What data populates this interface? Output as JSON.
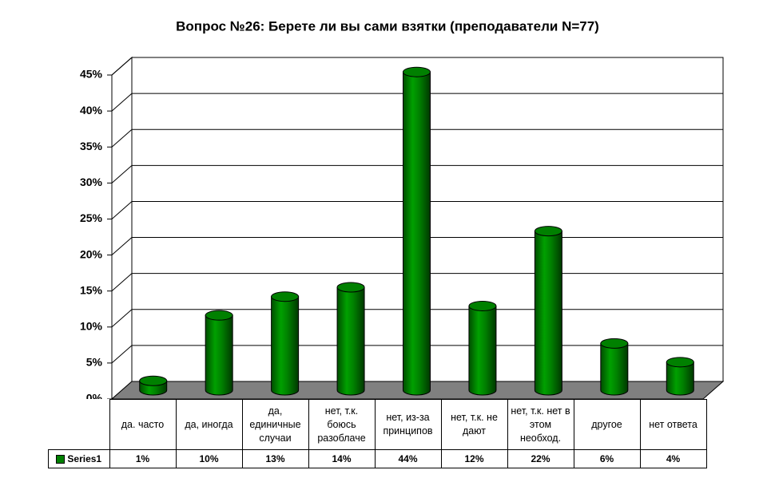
{
  "chart_data": {
    "type": "bar3d",
    "title": "Вопрос №26: Берете ли вы сами взятки (преподаватели N=77)",
    "categories": [
      "да. часто",
      "да, иногда",
      "да, единичные случаи",
      "нет, т.к. боюсь разоблаче",
      "нет, из-за принципов",
      "нет, т.к. не дают",
      "нет, т.к. нет в этом необход.",
      "другое",
      "нет ответа"
    ],
    "series": [
      {
        "name": "Series1",
        "color": "#008000",
        "values": [
          1.3,
          10.4,
          13.0,
          14.3,
          44.2,
          11.7,
          22.1,
          6.5,
          3.9
        ],
        "value_labels": [
          "1%",
          "10%",
          "13%",
          "14%",
          "44%",
          "12%",
          "22%",
          "6%",
          "4%"
        ]
      }
    ],
    "ylim": [
      0,
      45
    ],
    "yticks": [
      {
        "value": 0,
        "label": "0%"
      },
      {
        "value": 5,
        "label": "5%"
      },
      {
        "value": 10,
        "label": "10%"
      },
      {
        "value": 15,
        "label": "15%"
      },
      {
        "value": 20,
        "label": "20%"
      },
      {
        "value": 25,
        "label": "25%"
      },
      {
        "value": 30,
        "label": "30%"
      },
      {
        "value": 35,
        "label": "35%"
      },
      {
        "value": 40,
        "label": "40%"
      },
      {
        "value": 45,
        "label": "45%"
      }
    ],
    "grid": true
  }
}
